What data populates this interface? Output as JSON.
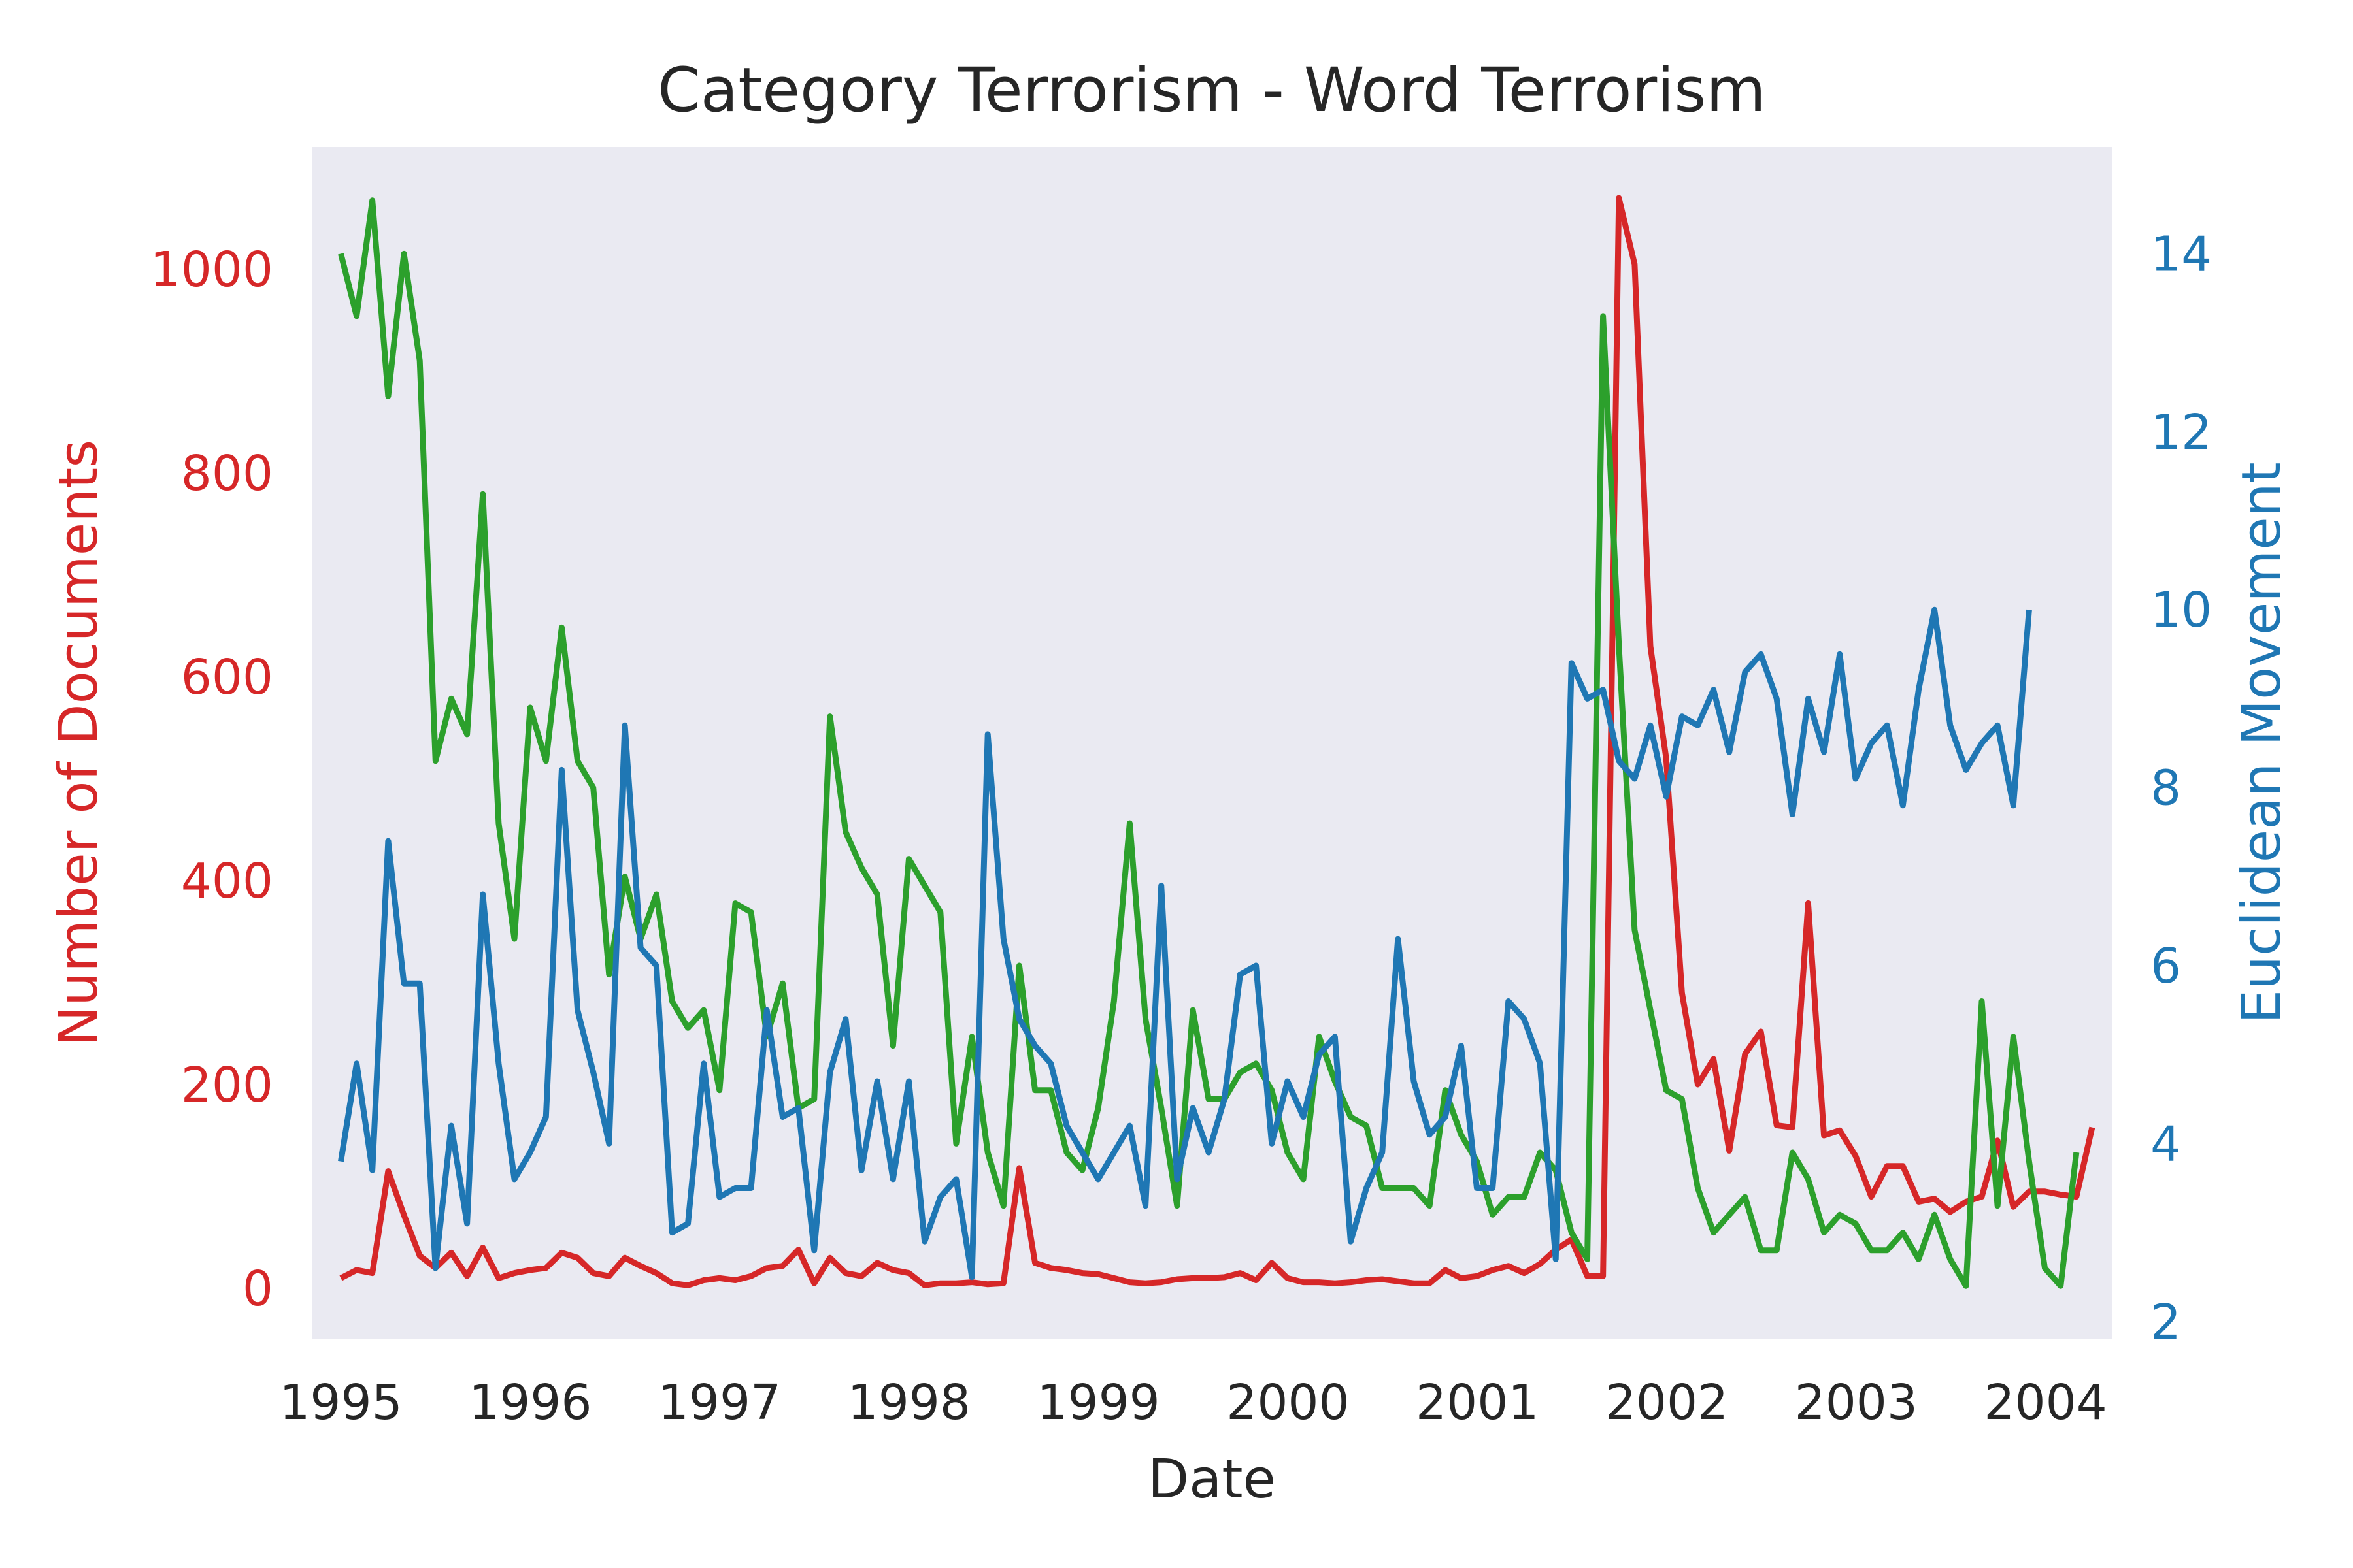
{
  "chart_data": {
    "type": "line",
    "title": "Category Terrorism - Word Terrorism",
    "xlabel": "Date",
    "ylabel_left": "Number of Documents",
    "ylabel_right": "Euclidean Movement",
    "xlim": [
      1994.85,
      2004.35
    ],
    "ylim_left": [
      -50,
      1120
    ],
    "ylim_right": [
      1.8,
      15.2
    ],
    "x_ticks": [
      1995,
      1996,
      1997,
      1998,
      1999,
      2000,
      2001,
      2002,
      2003,
      2004
    ],
    "x_tick_labels": [
      "1995",
      "1996",
      "1997",
      "1998",
      "1999",
      "2000",
      "2001",
      "2002",
      "2003",
      "2004"
    ],
    "y_left_ticks": [
      0,
      200,
      400,
      600,
      800,
      1000
    ],
    "y_left_tick_labels": [
      "0",
      "200",
      "400",
      "600",
      "800",
      "1000"
    ],
    "y_right_ticks": [
      2,
      4,
      6,
      8,
      10,
      12,
      14
    ],
    "y_right_tick_labels": [
      "2",
      "4",
      "6",
      "8",
      "10",
      "12",
      "14"
    ],
    "grid": false,
    "colors": {
      "background": "#eaeaf2",
      "left_axis": "#d62728",
      "right_axis": "#1f77b4",
      "text": "#262626"
    },
    "series": [
      {
        "name": "Number of Documents",
        "axis": "left",
        "color": "#d62728",
        "x_start": 1995.0,
        "x_step": 0.0833,
        "values": [
          10,
          18,
          15,
          115,
          72,
          32,
          20,
          35,
          12,
          40,
          10,
          15,
          18,
          20,
          35,
          30,
          15,
          12,
          30,
          22,
          15,
          5,
          3,
          8,
          10,
          8,
          12,
          20,
          22,
          38,
          5,
          30,
          15,
          12,
          25,
          18,
          15,
          3,
          5,
          5,
          6,
          4,
          5,
          118,
          25,
          20,
          18,
          15,
          14,
          10,
          6,
          5,
          6,
          9,
          10,
          10,
          11,
          15,
          8,
          25,
          10,
          6,
          6,
          5,
          6,
          8,
          9,
          7,
          5,
          5,
          18,
          10,
          12,
          18,
          22,
          15,
          24,
          38,
          48,
          12,
          12,
          1070,
          1005,
          630,
          520,
          290,
          200,
          225,
          135,
          230,
          252,
          160,
          158,
          378,
          150,
          155,
          130,
          90,
          120,
          120,
          85,
          88,
          75,
          85,
          90,
          145,
          80,
          95,
          95,
          92,
          90,
          158
        ]
      },
      {
        "name": "Euclidean Movement (green)",
        "axis": "right",
        "color": "#2ca02c",
        "x_start": 1995.0,
        "x_step": 0.0833,
        "values": [
          14.0,
          13.3,
          14.6,
          12.4,
          14.0,
          12.8,
          8.3,
          9.0,
          8.6,
          11.3,
          7.6,
          6.3,
          8.9,
          8.3,
          9.8,
          8.3,
          8.0,
          5.9,
          7.0,
          6.3,
          6.8,
          5.6,
          5.3,
          5.5,
          4.6,
          6.7,
          6.6,
          5.2,
          5.8,
          4.4,
          4.5,
          8.8,
          7.5,
          7.1,
          6.8,
          5.1,
          7.2,
          6.9,
          6.6,
          4.0,
          5.2,
          3.9,
          3.3,
          6.0,
          4.6,
          4.6,
          3.9,
          3.7,
          4.4,
          5.6,
          7.6,
          5.4,
          4.4,
          3.3,
          5.5,
          4.5,
          4.5,
          4.8,
          4.9,
          4.6,
          3.9,
          3.6,
          5.2,
          4.7,
          4.3,
          4.2,
          3.5,
          3.5,
          3.5,
          3.3,
          4.6,
          4.1,
          3.8,
          3.2,
          3.4,
          3.4,
          3.9,
          3.7,
          3.0,
          2.7,
          13.3,
          9.6,
          6.4,
          5.5,
          4.6,
          4.5,
          3.5,
          3.0,
          3.2,
          3.4,
          2.8,
          2.8,
          3.9,
          3.6,
          3.0,
          3.2,
          3.1,
          2.8,
          2.8,
          3.0,
          2.7,
          3.2,
          2.7,
          2.4,
          5.6,
          3.3,
          5.2,
          3.8,
          2.6,
          2.4,
          3.9
        ]
      },
      {
        "name": "Euclidean Movement (blue)",
        "axis": "right",
        "color": "#1f77b4",
        "x_start": 1995.0,
        "x_step": 0.0833,
        "values": [
          3.8,
          4.9,
          3.7,
          7.4,
          5.8,
          5.8,
          2.6,
          4.2,
          3.1,
          6.8,
          4.9,
          3.6,
          3.9,
          4.3,
          8.2,
          5.5,
          4.8,
          4.0,
          8.7,
          6.2,
          6.0,
          3.0,
          3.1,
          4.9,
          3.4,
          3.5,
          3.5,
          5.5,
          4.3,
          4.4,
          2.8,
          4.8,
          5.4,
          3.7,
          4.7,
          3.6,
          4.7,
          2.9,
          3.4,
          3.6,
          2.5,
          8.6,
          6.3,
          5.4,
          5.1,
          4.9,
          4.2,
          3.9,
          3.6,
          3.9,
          4.2,
          3.3,
          6.9,
          3.6,
          4.4,
          3.9,
          4.5,
          5.9,
          6.0,
          4.0,
          4.7,
          4.3,
          5.0,
          5.2,
          2.9,
          3.5,
          3.9,
          6.3,
          4.7,
          4.1,
          4.3,
          5.1,
          3.5,
          3.5,
          5.6,
          5.4,
          4.9,
          2.7,
          9.4,
          9.0,
          9.1,
          8.3,
          8.1,
          8.7,
          7.9,
          8.8,
          8.7,
          9.1,
          8.4,
          9.3,
          9.5,
          9.0,
          7.7,
          9.0,
          8.4,
          9.5,
          8.1,
          8.5,
          8.7,
          7.8,
          9.1,
          10.0,
          8.7,
          8.2,
          8.5,
          8.7,
          7.8,
          10.0
        ]
      }
    ]
  }
}
